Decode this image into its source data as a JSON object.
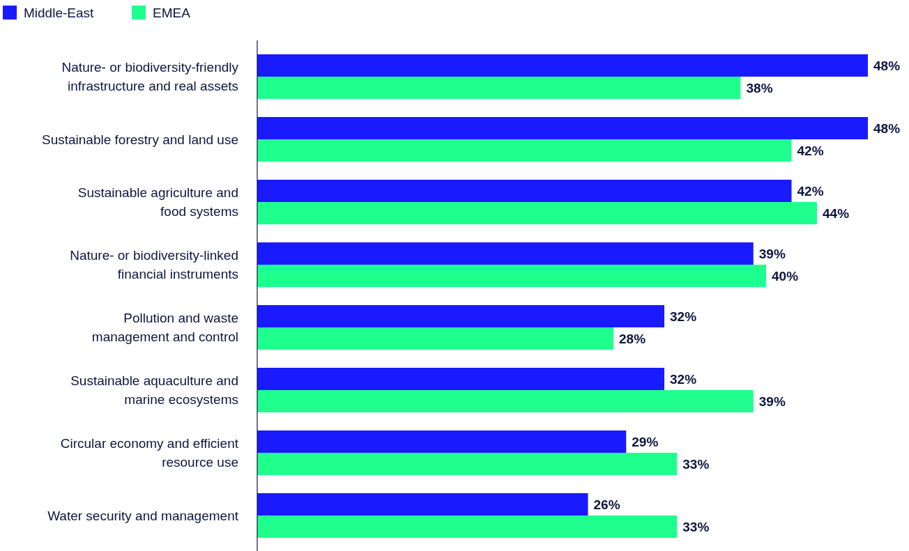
{
  "chart_data": {
    "type": "bar",
    "orientation": "horizontal",
    "legend": "top left",
    "categories": [
      "Nature- or biodiversity-friendly\ninfrastructure and real assets",
      "Sustainable forestry and land use",
      "Sustainable agriculture and\nfood systems",
      "Nature- or biodiversity-linked\nfinancial instruments",
      "Pollution and waste\nmanagement and control",
      "Sustainable aquaculture and\nmarine ecosystems",
      "Circular economy and efficient\nresource use",
      "Water security and management"
    ],
    "series": [
      {
        "name": "Middle-East",
        "color": "#1a1aff",
        "values": [
          48,
          48,
          42,
          39,
          32,
          32,
          29,
          26
        ],
        "value_labels": [
          "48%",
          "48%",
          "42%",
          "39%",
          "32%",
          "32%",
          "29%",
          "26%"
        ]
      },
      {
        "name": "EMEA",
        "color": "#1eff8e",
        "values": [
          38,
          42,
          44,
          40,
          28,
          39,
          33,
          33
        ],
        "value_labels": [
          "38%",
          "42%",
          "44%",
          "40%",
          "28%",
          "39%",
          "33%",
          "33%"
        ]
      }
    ]
  }
}
